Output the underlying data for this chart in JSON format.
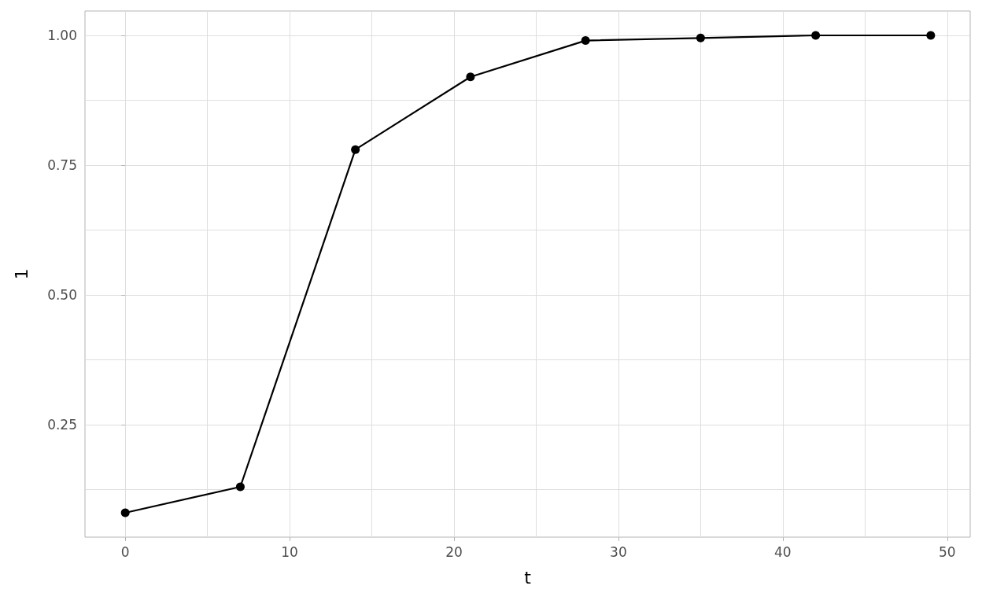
{
  "chart_data": {
    "type": "line",
    "xlabel": "t",
    "ylabel": "1",
    "x": [
      0,
      7,
      14,
      21,
      28,
      35,
      42,
      49
    ],
    "series": [
      {
        "color": "#000000",
        "values": [
          0.08,
          0.13,
          0.78,
          0.92,
          0.99,
          0.995,
          1.0,
          1.0
        ]
      }
    ],
    "xlim": [
      -2.45,
      51.4
    ],
    "xticks": [
      0,
      {
        "value": 5,
        "label": null
      },
      10,
      {
        "value": 15,
        "label": null
      },
      20,
      {
        "value": 25,
        "label": null
      },
      30,
      {
        "value": 35,
        "label": null
      },
      40,
      {
        "value": 45,
        "label": null
      },
      50
    ],
    "ylim": [
      0.033,
      1.047
    ],
    "yticks": [
      {
        "value": 0.125,
        "label": null
      },
      {
        "value": 0.25,
        "label": "0.25"
      },
      {
        "value": 0.375,
        "label": null
      },
      {
        "value": 0.5,
        "label": "0.50"
      },
      {
        "value": 0.625,
        "label": null
      },
      {
        "value": 0.75,
        "label": "0.75"
      },
      {
        "value": 0.875,
        "label": null
      },
      {
        "value": 1,
        "label": "1.00"
      }
    ],
    "grid": true,
    "marker": "circle",
    "line_style": "solid"
  }
}
